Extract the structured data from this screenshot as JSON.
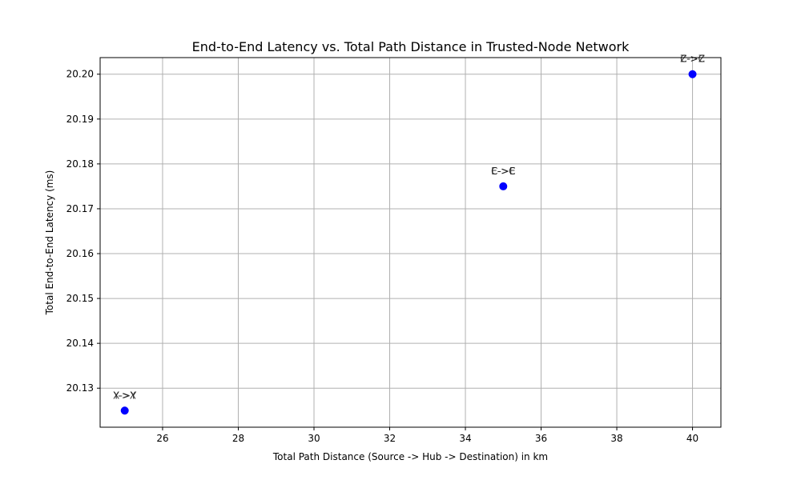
{
  "chart_data": {
    "type": "scatter",
    "title": "End-to-End Latency vs. Total Path Distance in Trusted-Node Network",
    "xlabel": "Total Path Distance (Source -> Hub -> Destination) in km",
    "ylabel": "Total End-to-End Latency (ms)",
    "xlim": [
      24.35,
      40.75
    ],
    "ylim": [
      20.1213,
      20.2037
    ],
    "xticks": [
      26,
      28,
      30,
      32,
      34,
      36,
      38,
      40
    ],
    "yticks": [
      20.13,
      20.14,
      20.15,
      20.16,
      20.17,
      20.18,
      20.19,
      20.2
    ],
    "ytick_labels": [
      "20.13",
      "20.14",
      "20.15",
      "20.16",
      "20.17",
      "20.18",
      "20.19",
      "20.20"
    ],
    "grid": true,
    "marker_color": "#0000ff",
    "points": [
      {
        "x": 25,
        "y": 20.125,
        "labels": [
          "Y->X",
          "X->Y"
        ]
      },
      {
        "x": 35,
        "y": 20.175,
        "labels": [
          "E->C",
          "C->E"
        ]
      },
      {
        "x": 40,
        "y": 20.2,
        "labels": [
          "Z->C",
          "C->Z"
        ]
      }
    ]
  }
}
